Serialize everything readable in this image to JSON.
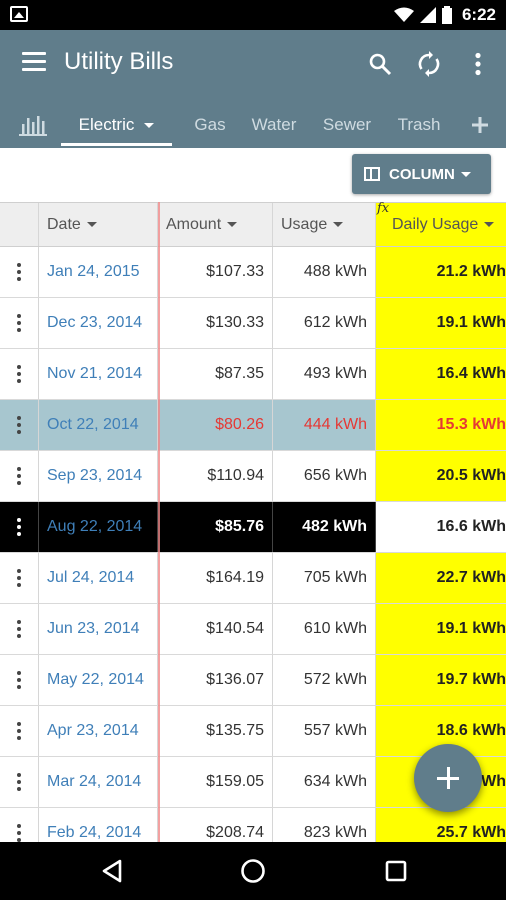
{
  "status_bar": {
    "time": "6:22"
  },
  "app": {
    "title": "Utility Bills"
  },
  "tabs": [
    {
      "label": "Electric",
      "active": true
    },
    {
      "label": "Gas"
    },
    {
      "label": "Water"
    },
    {
      "label": "Sewer"
    },
    {
      "label": "Trash"
    }
  ],
  "toolbar": {
    "column_button_label": "COLUMN"
  },
  "table": {
    "formula_mark": "fx",
    "headers": [
      "Date",
      "Amount",
      "Usage",
      "Daily Usage"
    ],
    "rows": [
      {
        "date": "Jan 24, 2015",
        "amount": "$107.33",
        "usage": "488 kWh",
        "daily": "21.2 kWh"
      },
      {
        "date": "Dec 23, 2014",
        "amount": "$130.33",
        "usage": "612 kWh",
        "daily": "19.1 kWh"
      },
      {
        "date": "Nov 21, 2014",
        "amount": "$87.35",
        "usage": "493 kWh",
        "daily": "16.4 kWh"
      },
      {
        "date": "Oct 22, 2014",
        "amount": "$80.26",
        "usage": "444 kWh",
        "daily": "15.3 kWh"
      },
      {
        "date": "Sep 23, 2014",
        "amount": "$110.94",
        "usage": "656 kWh",
        "daily": "20.5 kWh"
      },
      {
        "date": "Aug 22, 2014",
        "amount": "$85.76",
        "usage": "482 kWh",
        "daily": "16.6 kWh"
      },
      {
        "date": "Jul 24, 2014",
        "amount": "$164.19",
        "usage": "705 kWh",
        "daily": "22.7 kWh"
      },
      {
        "date": "Jun 23, 2014",
        "amount": "$140.54",
        "usage": "610 kWh",
        "daily": "19.1 kWh"
      },
      {
        "date": "May 22, 2014",
        "amount": "$136.07",
        "usage": "572 kWh",
        "daily": "19.7 kWh"
      },
      {
        "date": "Apr 23, 2014",
        "amount": "$135.75",
        "usage": "557 kWh",
        "daily": "18.6 kWh"
      },
      {
        "date": "Mar 24, 2014",
        "amount": "$159.05",
        "usage": "634 kWh",
        "daily": "20.5 kWh"
      },
      {
        "date": "Feb 24, 2014",
        "amount": "$208.74",
        "usage": "823 kWh",
        "daily": "25.7 kWh"
      }
    ]
  },
  "colors": {
    "primary": "#607d8b",
    "highlight_column": "#ffff00",
    "selected_row": "#a7c6cf",
    "selected_text": "#e53935",
    "date_link": "#3f7fb8"
  }
}
